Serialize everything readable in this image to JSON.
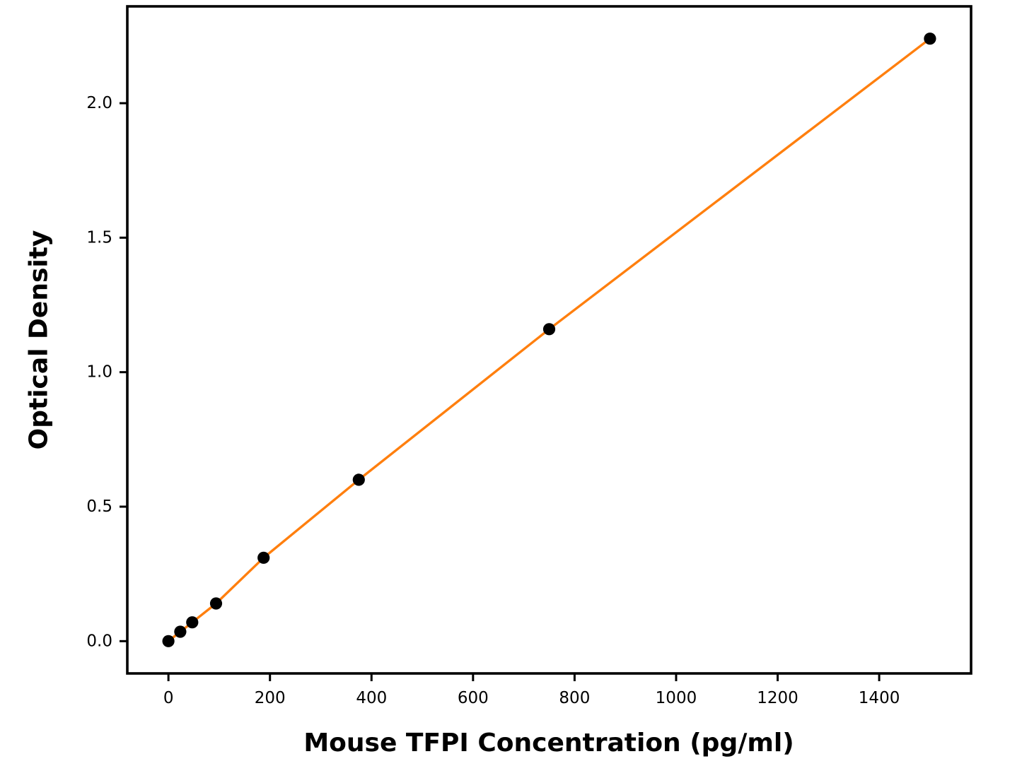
{
  "figure": {
    "background": "#ffffff"
  },
  "chart_data": {
    "type": "scatter",
    "title": "",
    "xlabel": "Mouse TFPI Concentration (pg/ml)",
    "ylabel": "Optical Density",
    "series": [
      {
        "name": "standard-curve",
        "x": [
          0,
          23.4,
          46.9,
          93.8,
          187.5,
          375,
          750,
          1500
        ],
        "y": [
          0.0,
          0.035,
          0.07,
          0.14,
          0.31,
          0.6,
          1.16,
          2.24
        ]
      }
    ],
    "xlim": [
      -81,
      1581
    ],
    "ylim": [
      -0.12,
      2.36
    ],
    "x_ticks": [
      0,
      200,
      400,
      600,
      800,
      1000,
      1200,
      1400
    ],
    "x_tick_labels": [
      "0",
      "200",
      "400",
      "600",
      "800",
      "1000",
      "1200",
      "1400"
    ],
    "y_ticks": [
      0.0,
      0.5,
      1.0,
      1.5,
      2.0
    ],
    "y_tick_labels": [
      "0.0",
      "0.5",
      "1.0",
      "1.5",
      "2.0"
    ],
    "grid": false,
    "legend": null,
    "line_color": "#ff7f0e",
    "marker_color": "#000000",
    "axis_color": "#000000"
  }
}
